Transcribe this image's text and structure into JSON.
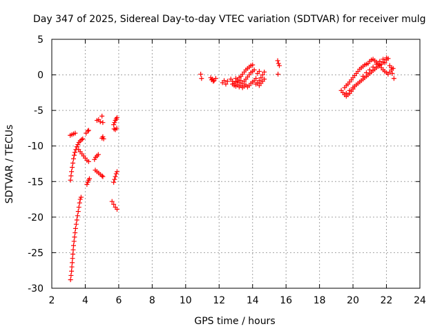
{
  "chart_data": {
    "type": "scatter",
    "title": "Day 347 of 2025, Sidereal Day-to-day VTEC variation (SDTVAR) for receiver mulg",
    "xlabel": "GPS time / hours",
    "ylabel": "SDTVAR / TECUs",
    "xlim": [
      2,
      24
    ],
    "ylim": [
      -30,
      5
    ],
    "xticks": [
      2,
      4,
      6,
      8,
      10,
      12,
      14,
      16,
      18,
      20,
      22,
      24
    ],
    "yticks": [
      -30,
      -25,
      -20,
      -15,
      -10,
      -5,
      0,
      5
    ],
    "xtick_labels": [
      "2",
      "4",
      "6",
      "8",
      "10",
      "12",
      "14",
      "16",
      "18",
      "20",
      "22",
      "24"
    ],
    "ytick_labels": [
      "-30",
      "-25",
      "-20",
      "-15",
      "-10",
      "-5",
      "0",
      "5"
    ],
    "grid": true,
    "marker": "+",
    "color": "#ff0000",
    "series": [
      {
        "name": "SDTVAR",
        "points": [
          [
            3.12,
            -28.8
          ],
          [
            3.15,
            -28.2
          ],
          [
            3.18,
            -27.6
          ],
          [
            3.2,
            -27.0
          ],
          [
            3.22,
            -26.4
          ],
          [
            3.24,
            -25.8
          ],
          [
            3.26,
            -25.2
          ],
          [
            3.28,
            -24.6
          ],
          [
            3.3,
            -24.0
          ],
          [
            3.33,
            -23.4
          ],
          [
            3.36,
            -22.8
          ],
          [
            3.39,
            -22.2
          ],
          [
            3.42,
            -21.6
          ],
          [
            3.46,
            -21.0
          ],
          [
            3.5,
            -20.4
          ],
          [
            3.54,
            -19.8
          ],
          [
            3.58,
            -19.2
          ],
          [
            3.62,
            -18.6
          ],
          [
            3.66,
            -18.0
          ],
          [
            3.7,
            -17.5
          ],
          [
            3.75,
            -17.2
          ],
          [
            3.12,
            -14.8
          ],
          [
            3.15,
            -14.2
          ],
          [
            3.18,
            -13.6
          ],
          [
            3.22,
            -13.0
          ],
          [
            3.26,
            -12.4
          ],
          [
            3.3,
            -11.8
          ],
          [
            3.34,
            -11.3
          ],
          [
            3.38,
            -10.9
          ],
          [
            3.44,
            -10.5
          ],
          [
            3.5,
            -10.1
          ],
          [
            3.56,
            -9.8
          ],
          [
            3.62,
            -9.5
          ],
          [
            3.7,
            -9.3
          ],
          [
            3.78,
            -9.1
          ],
          [
            3.85,
            -9.0
          ],
          [
            3.1,
            -8.5
          ],
          [
            3.2,
            -8.4
          ],
          [
            3.3,
            -8.3
          ],
          [
            3.4,
            -8.2
          ],
          [
            3.6,
            -10.5
          ],
          [
            3.7,
            -10.8
          ],
          [
            3.8,
            -11.1
          ],
          [
            3.9,
            -11.4
          ],
          [
            4.0,
            -11.7
          ],
          [
            4.1,
            -12.0
          ],
          [
            4.2,
            -12.2
          ],
          [
            4.05,
            -8.2
          ],
          [
            4.15,
            -7.9
          ],
          [
            4.2,
            -7.8
          ],
          [
            4.1,
            -15.4
          ],
          [
            4.15,
            -15.1
          ],
          [
            4.2,
            -14.8
          ],
          [
            4.25,
            -14.6
          ],
          [
            4.7,
            -6.4
          ],
          [
            4.8,
            -6.3
          ],
          [
            4.9,
            -6.6
          ],
          [
            5.0,
            -5.8
          ],
          [
            5.05,
            -6.7
          ],
          [
            4.55,
            -11.9
          ],
          [
            4.62,
            -11.6
          ],
          [
            4.7,
            -11.4
          ],
          [
            4.78,
            -11.2
          ],
          [
            4.6,
            -13.4
          ],
          [
            4.7,
            -13.6
          ],
          [
            4.8,
            -13.8
          ],
          [
            4.9,
            -14.0
          ],
          [
            5.0,
            -14.2
          ],
          [
            5.05,
            -14.3
          ],
          [
            5.0,
            -8.9
          ],
          [
            5.05,
            -8.7
          ],
          [
            5.1,
            -9.0
          ],
          [
            5.7,
            -7.0
          ],
          [
            5.75,
            -6.7
          ],
          [
            5.8,
            -6.4
          ],
          [
            5.85,
            -6.2
          ],
          [
            5.9,
            -6.0
          ],
          [
            5.72,
            -7.6
          ],
          [
            5.8,
            -7.7
          ],
          [
            5.88,
            -7.5
          ],
          [
            5.7,
            -15.1
          ],
          [
            5.75,
            -14.7
          ],
          [
            5.8,
            -14.3
          ],
          [
            5.85,
            -13.9
          ],
          [
            5.9,
            -13.6
          ],
          [
            5.6,
            -17.8
          ],
          [
            5.7,
            -18.2
          ],
          [
            5.8,
            -18.6
          ],
          [
            5.9,
            -18.9
          ],
          [
            10.9,
            0.1
          ],
          [
            10.95,
            -0.5
          ],
          [
            11.5,
            -0.4
          ],
          [
            11.6,
            -0.6
          ],
          [
            11.7,
            -0.8
          ],
          [
            11.8,
            -0.5
          ],
          [
            11.65,
            -0.9
          ],
          [
            11.55,
            -0.7
          ],
          [
            12.2,
            -1.1
          ],
          [
            12.3,
            -0.8
          ],
          [
            12.4,
            -1.3
          ],
          [
            12.5,
            -0.9
          ],
          [
            12.7,
            -0.6
          ],
          [
            12.8,
            -0.9
          ],
          [
            12.9,
            -1.2
          ],
          [
            13.0,
            -1.0
          ],
          [
            13.1,
            -0.7
          ],
          [
            13.2,
            -0.4
          ],
          [
            13.3,
            -0.2
          ],
          [
            13.4,
            0.1
          ],
          [
            13.5,
            0.4
          ],
          [
            13.6,
            0.7
          ],
          [
            13.7,
            0.9
          ],
          [
            13.8,
            1.1
          ],
          [
            13.9,
            1.3
          ],
          [
            14.0,
            1.4
          ],
          [
            12.8,
            -1.3
          ],
          [
            12.9,
            -1.5
          ],
          [
            13.0,
            -1.6
          ],
          [
            13.1,
            -1.4
          ],
          [
            13.2,
            -1.7
          ],
          [
            13.3,
            -1.5
          ],
          [
            13.4,
            -1.8
          ],
          [
            13.5,
            -1.6
          ],
          [
            13.6,
            -1.4
          ],
          [
            13.7,
            -1.7
          ],
          [
            13.8,
            -1.5
          ],
          [
            13.9,
            -1.2
          ],
          [
            14.0,
            -1.0
          ],
          [
            14.1,
            -0.8
          ],
          [
            14.2,
            -0.5
          ],
          [
            13.0,
            -0.5
          ],
          [
            13.1,
            -0.9
          ],
          [
            13.2,
            -1.1
          ],
          [
            13.3,
            -0.8
          ],
          [
            13.4,
            -1.2
          ],
          [
            13.5,
            -0.9
          ],
          [
            13.6,
            -0.6
          ],
          [
            13.7,
            -0.3
          ],
          [
            13.8,
            0.0
          ],
          [
            13.9,
            0.3
          ],
          [
            14.0,
            0.5
          ],
          [
            14.1,
            0.7
          ],
          [
            14.2,
            -1.3
          ],
          [
            14.3,
            -1.1
          ],
          [
            14.4,
            -0.8
          ],
          [
            14.5,
            -0.4
          ],
          [
            14.6,
            0.0
          ],
          [
            14.7,
            0.4
          ],
          [
            14.4,
            -1.5
          ],
          [
            14.5,
            -1.2
          ],
          [
            14.6,
            -0.9
          ],
          [
            14.7,
            -0.6
          ],
          [
            14.3,
            0.2
          ],
          [
            14.4,
            0.5
          ],
          [
            15.5,
            2.0
          ],
          [
            15.55,
            1.6
          ],
          [
            15.6,
            1.3
          ],
          [
            15.52,
            0.1
          ],
          [
            19.3,
            -2.2
          ],
          [
            19.4,
            -2.5
          ],
          [
            19.5,
            -2.8
          ],
          [
            19.6,
            -3.0
          ],
          [
            19.7,
            -2.8
          ],
          [
            19.8,
            -2.6
          ],
          [
            19.9,
            -2.3
          ],
          [
            20.0,
            -2.0
          ],
          [
            19.5,
            -1.8
          ],
          [
            19.6,
            -1.5
          ],
          [
            19.7,
            -1.3
          ],
          [
            19.8,
            -1.0
          ],
          [
            19.9,
            -0.7
          ],
          [
            20.0,
            -0.4
          ],
          [
            20.1,
            -0.1
          ],
          [
            20.2,
            0.2
          ],
          [
            20.3,
            0.5
          ],
          [
            20.4,
            0.8
          ],
          [
            20.5,
            1.0
          ],
          [
            20.6,
            1.2
          ],
          [
            20.7,
            1.4
          ],
          [
            20.8,
            1.5
          ],
          [
            20.9,
            1.6
          ],
          [
            19.6,
            -2.6
          ],
          [
            19.8,
            -2.2
          ],
          [
            20.0,
            -1.8
          ],
          [
            20.2,
            -1.4
          ],
          [
            20.4,
            -1.0
          ],
          [
            20.6,
            -0.6
          ],
          [
            20.8,
            -0.2
          ],
          [
            21.0,
            0.2
          ],
          [
            21.2,
            0.6
          ],
          [
            21.4,
            1.0
          ],
          [
            21.6,
            1.4
          ],
          [
            21.8,
            1.8
          ],
          [
            22.0,
            2.1
          ],
          [
            22.1,
            2.3
          ],
          [
            20.1,
            -1.6
          ],
          [
            20.3,
            -1.2
          ],
          [
            20.5,
            -0.8
          ],
          [
            20.7,
            -0.4
          ],
          [
            20.9,
            0.0
          ],
          [
            21.1,
            0.4
          ],
          [
            21.3,
            0.8
          ],
          [
            21.5,
            1.2
          ],
          [
            21.7,
            1.5
          ],
          [
            21.9,
            1.7
          ],
          [
            21.0,
            1.9
          ],
          [
            21.1,
            2.1
          ],
          [
            21.2,
            2.2
          ],
          [
            21.3,
            2.0
          ],
          [
            21.4,
            1.8
          ],
          [
            21.5,
            1.6
          ],
          [
            21.6,
            1.3
          ],
          [
            21.7,
            1.0
          ],
          [
            21.8,
            0.7
          ],
          [
            21.9,
            0.5
          ],
          [
            22.0,
            0.3
          ],
          [
            22.1,
            0.1
          ],
          [
            22.2,
            0.4
          ],
          [
            22.3,
            0.7
          ],
          [
            22.4,
            0.9
          ],
          [
            22.35,
            0.2
          ],
          [
            22.45,
            -0.5
          ],
          [
            20.6,
            -0.2
          ],
          [
            20.8,
            0.3
          ],
          [
            21.0,
            0.7
          ],
          [
            21.2,
            1.1
          ],
          [
            21.4,
            1.5
          ],
          [
            21.6,
            1.9
          ],
          [
            21.8,
            2.2
          ],
          [
            22.0,
            2.4
          ],
          [
            22.2,
            1.3
          ],
          [
            22.3,
            1.0
          ]
        ]
      }
    ]
  }
}
